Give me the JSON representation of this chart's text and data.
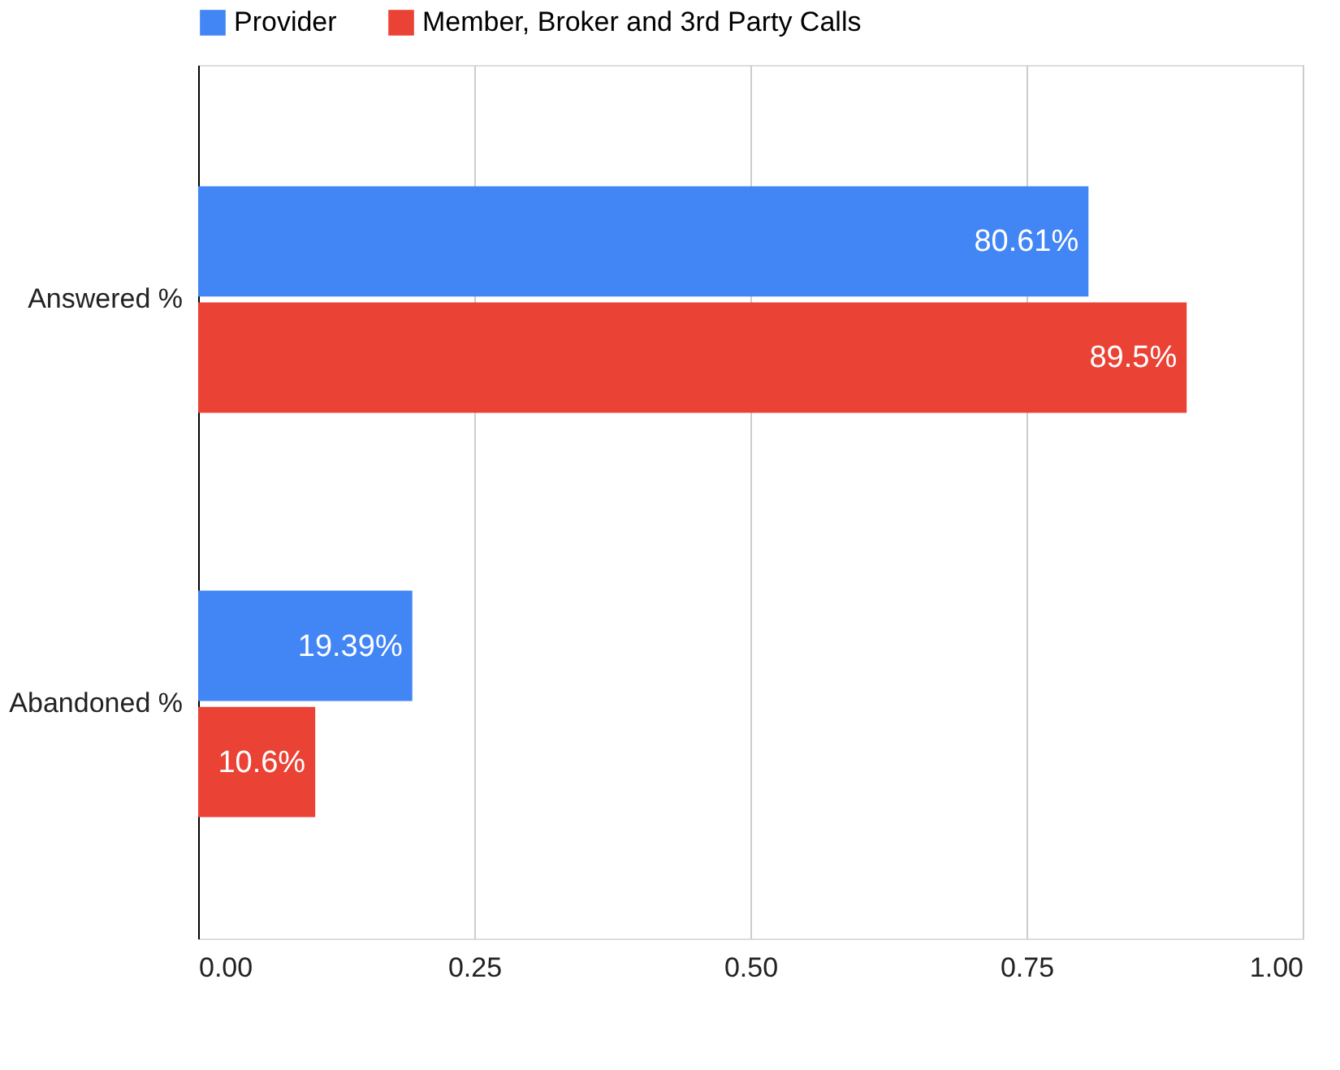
{
  "chart_data": {
    "type": "bar",
    "orientation": "horizontal",
    "categories": [
      "Answered %",
      "Abandoned %"
    ],
    "series": [
      {
        "name": "Provider",
        "color": "#4285f4",
        "values": [
          0.8061,
          0.1939
        ],
        "value_labels": [
          "80.61%",
          "19.39%"
        ]
      },
      {
        "name": "Member, Broker and 3rd Party Calls",
        "color": "#ea4335",
        "values": [
          0.895,
          0.106
        ],
        "value_labels": [
          "89.5%",
          "10.6%"
        ]
      }
    ],
    "xlim": [
      0,
      1
    ],
    "xticks": [
      {
        "value": 0,
        "label": "0.00"
      },
      {
        "value": 0.25,
        "label": "0.25"
      },
      {
        "value": 0.5,
        "label": "0.50"
      },
      {
        "value": 0.75,
        "label": "0.75"
      },
      {
        "value": 1,
        "label": "1.00"
      }
    ],
    "grid": "x",
    "legend": "top"
  }
}
